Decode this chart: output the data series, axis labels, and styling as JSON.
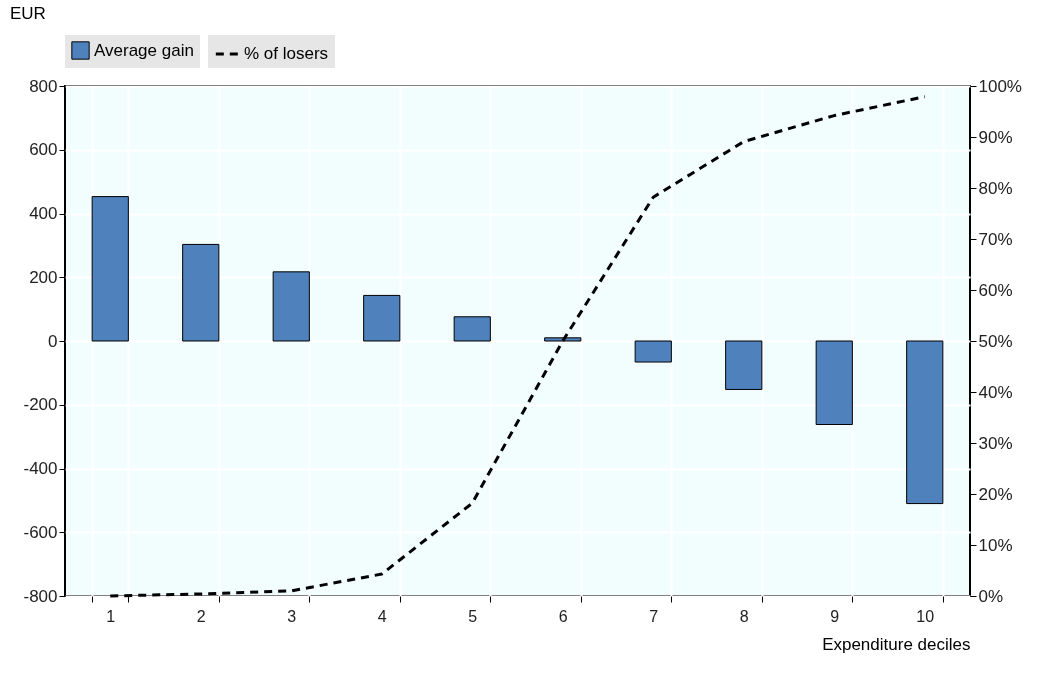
{
  "chart_data": {
    "type": "bar",
    "xlabel": "Expenditure deciles",
    "ylabel": "EUR",
    "categories": [
      "1",
      "2",
      "3",
      "4",
      "5",
      "6",
      "7",
      "8",
      "9",
      "10"
    ],
    "series": [
      {
        "name": "Average gain",
        "color": "#4f81bd",
        "values": [
          453,
          303,
          217,
          143,
          76,
          10,
          -66,
          -152,
          -262,
          -510
        ]
      },
      {
        "name": "% of losers",
        "type": "line",
        "axis": "y2",
        "color": "#000000",
        "line_style": "dashed",
        "values": [
          0,
          0.4,
          1.0,
          4.3,
          18.2,
          50,
          78.2,
          89.1,
          94.2,
          97.9
        ]
      }
    ],
    "ylim": [
      -800,
      800
    ],
    "yticks": [
      -800,
      -600,
      -400,
      -200,
      0,
      200,
      400,
      600,
      800
    ],
    "y2lim": [
      0,
      100
    ],
    "y2ticks": [
      {
        "value": 0,
        "label": "0%"
      },
      {
        "value": 10,
        "label": "10%"
      },
      {
        "value": 20,
        "label": "20%"
      },
      {
        "value": 30,
        "label": "30%"
      },
      {
        "value": 40,
        "label": "40%"
      },
      {
        "value": 50,
        "label": "50%"
      },
      {
        "value": 60,
        "label": "60%"
      },
      {
        "value": 70,
        "label": "70%"
      },
      {
        "value": 80,
        "label": "80%"
      },
      {
        "value": 90,
        "label": "90%"
      },
      {
        "value": 100,
        "label": "100%"
      }
    ],
    "grid": true,
    "legend": "top",
    "marker": "none"
  }
}
